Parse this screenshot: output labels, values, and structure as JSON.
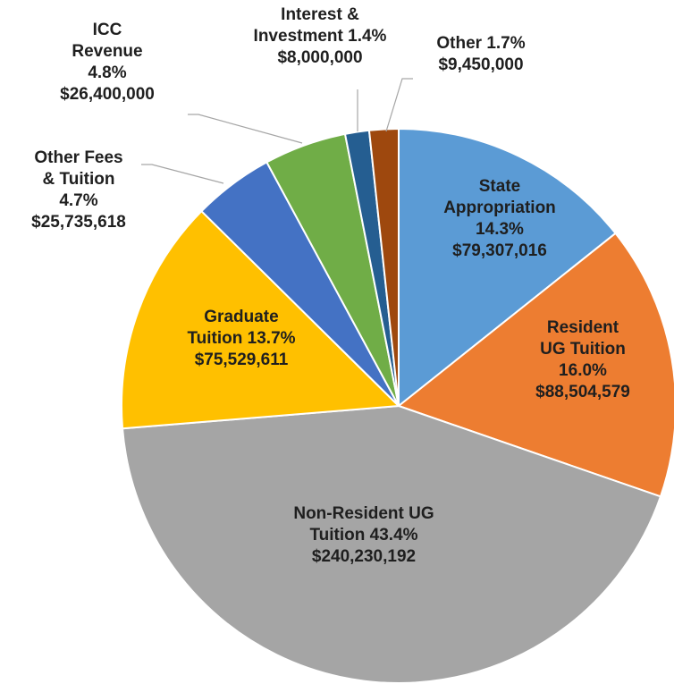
{
  "chart_data": {
    "type": "pie",
    "categories": [
      "State\nAppropriation",
      "Resident\nUG Tuition",
      "Non-Resident UG\nTuition",
      "Graduate\nTuition",
      "Other Fees\n& Tuition",
      "ICC\nRevenue",
      "Interest &\nInvestment",
      "Other"
    ],
    "values": [
      14.3,
      16.0,
      43.4,
      13.7,
      4.7,
      4.8,
      1.4,
      1.7
    ],
    "value_labels": [
      "14.3%",
      "16.0%",
      "43.4%",
      "13.7%",
      "4.7%",
      "4.8%",
      "1.4%",
      "1.7%"
    ],
    "amount_labels": [
      "$79,307,016",
      "$88,504,579",
      "$240,230,192",
      "$75,529,611",
      "$25,735,618",
      "$26,400,000",
      "$8,000,000",
      "$9,450,000"
    ],
    "colors": [
      "#5b9bd5",
      "#ed7d31",
      "#a5a5a5",
      "#ffc000",
      "#4472c4",
      "#70ad47",
      "#255e91",
      "#9e480e"
    ]
  }
}
